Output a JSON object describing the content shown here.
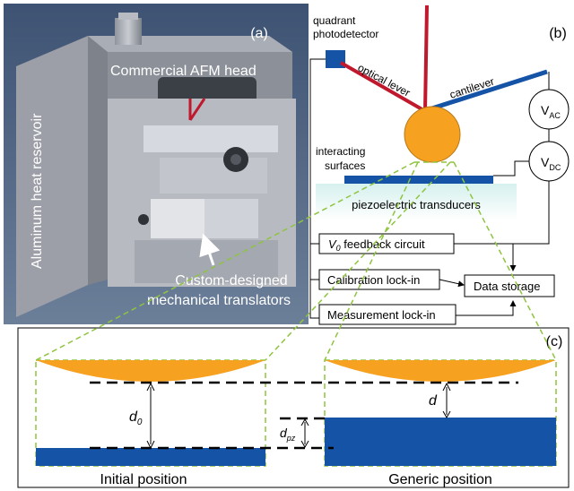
{
  "panel_a": {
    "tag": "(a)",
    "head_label": "Commercial AFM head",
    "reservoir_label": "Aluminum heat reservoir",
    "translator_label_line1": "Custom-designed",
    "translator_label_line2": "mechanical translators"
  },
  "panel_b": {
    "tag": "(b)",
    "photodetector_line1": "quadrant",
    "photodetector_line2": "photodetector",
    "optical_lever": "optical lever",
    "cantilever": "cantilever",
    "v_ac_main": "V",
    "v_ac_sub": "AC",
    "v_dc_main": "V",
    "v_dc_sub": "DC",
    "interacting_line1": "interacting",
    "interacting_line2": "surfaces",
    "piezo": "piezoelectric transducers",
    "feedback_main": "V",
    "feedback_sub": "0",
    "feedback_rest": " feedback circuit",
    "calibration": "Calibration lock-in",
    "measurement": "Measurement lock-in",
    "storage": "Data storage"
  },
  "panel_c": {
    "tag": "(c)",
    "d0_main": "d",
    "d0_sub": "0",
    "d": "d",
    "dpz_main": "d",
    "dpz_sub": "pz",
    "initial": "Initial position",
    "generic": "Generic position"
  },
  "colors": {
    "sphere_orange": "#f6a11f",
    "substrate_blue": "#1553a6",
    "laser_red": "#c0182d",
    "dashed_green": "#8ec43f",
    "piezo_cyan": "#c9ece9",
    "photo_background": "#4e6485"
  }
}
